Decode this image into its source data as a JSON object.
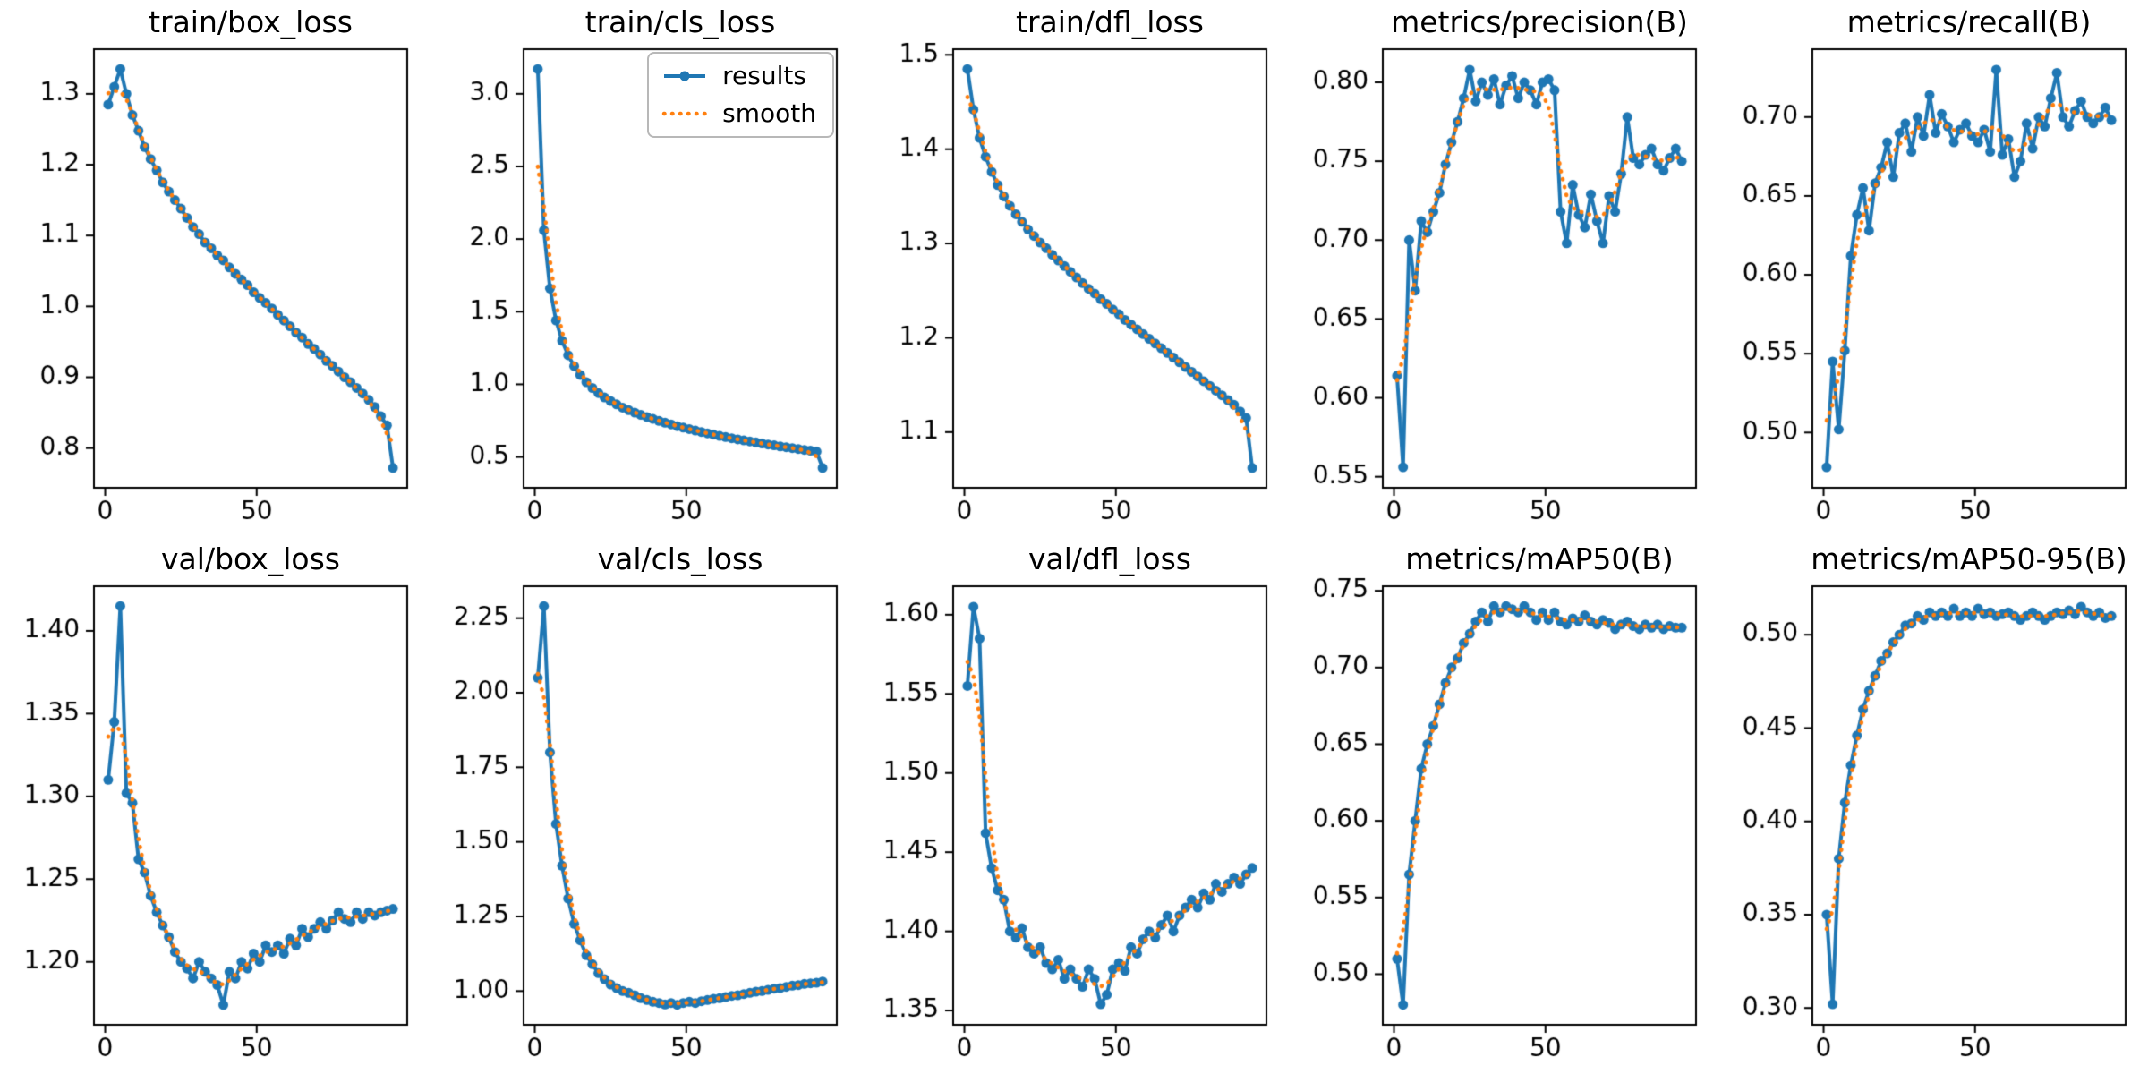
{
  "figure": {
    "background": "#ffffff",
    "colors": {
      "results": "#1f77b4",
      "smooth": "#ff7f0e",
      "axis": "#000000",
      "text": "#000000"
    },
    "legend": {
      "entries": [
        {
          "label": "results"
        },
        {
          "label": "smooth"
        }
      ]
    }
  },
  "chart_data": {
    "type": "line",
    "grid": {
      "rows": 2,
      "cols": 5
    },
    "xlim": [
      -3.7,
      99.7
    ],
    "xticks": [
      0,
      50
    ],
    "epochs": [
      1,
      3,
      5,
      7,
      9,
      11,
      13,
      15,
      17,
      19,
      21,
      23,
      25,
      27,
      29,
      31,
      33,
      35,
      37,
      39,
      41,
      43,
      45,
      47,
      49,
      51,
      53,
      55,
      57,
      59,
      61,
      63,
      65,
      67,
      69,
      71,
      73,
      75,
      77,
      79,
      81,
      83,
      85,
      87,
      89,
      91,
      93,
      95
    ],
    "series_names": [
      "results",
      "smooth"
    ],
    "smooth_note": "orange dotted 'smooth' series is a gaussian-smoothed version of the blue 'results' series",
    "charts": [
      {
        "title": "train/box_loss",
        "yticks": [
          0.8,
          0.9,
          1.0,
          1.1,
          1.2,
          1.3
        ],
        "tick_decimals": 1,
        "ylim": [
          0.744,
          1.363
        ],
        "legend": false,
        "values": [
          1.285,
          1.31,
          1.335,
          1.3,
          1.27,
          1.248,
          1.225,
          1.208,
          1.192,
          1.175,
          1.162,
          1.15,
          1.138,
          1.125,
          1.112,
          1.102,
          1.09,
          1.082,
          1.072,
          1.065,
          1.055,
          1.046,
          1.038,
          1.03,
          1.02,
          1.012,
          1.005,
          0.997,
          0.988,
          0.98,
          0.972,
          0.963,
          0.956,
          0.947,
          0.94,
          0.932,
          0.923,
          0.916,
          0.908,
          0.9,
          0.893,
          0.885,
          0.877,
          0.868,
          0.858,
          0.845,
          0.832,
          0.772
        ]
      },
      {
        "title": "train/cls_loss",
        "yticks": [
          0.5,
          1.0,
          1.5,
          2.0,
          2.5,
          3.0
        ],
        "tick_decimals": 1,
        "ylim": [
          0.288,
          3.307
        ],
        "legend": true,
        "values": [
          3.17,
          2.06,
          1.66,
          1.44,
          1.3,
          1.2,
          1.125,
          1.065,
          1.015,
          0.975,
          0.94,
          0.91,
          0.885,
          0.862,
          0.84,
          0.822,
          0.805,
          0.79,
          0.775,
          0.762,
          0.748,
          0.736,
          0.724,
          0.712,
          0.702,
          0.692,
          0.682,
          0.672,
          0.663,
          0.654,
          0.645,
          0.637,
          0.629,
          0.621,
          0.614,
          0.607,
          0.6,
          0.593,
          0.586,
          0.58,
          0.573,
          0.567,
          0.561,
          0.555,
          0.549,
          0.543,
          0.537,
          0.425
        ]
      },
      {
        "title": "train/dfl_loss",
        "yticks": [
          1.1,
          1.2,
          1.3,
          1.4,
          1.5
        ],
        "tick_decimals": 1,
        "ylim": [
          1.041,
          1.506
        ],
        "legend": false,
        "values": [
          1.485,
          1.442,
          1.412,
          1.392,
          1.376,
          1.362,
          1.35,
          1.34,
          1.331,
          1.323,
          1.315,
          1.308,
          1.301,
          1.295,
          1.288,
          1.282,
          1.276,
          1.27,
          1.264,
          1.258,
          1.252,
          1.247,
          1.241,
          1.236,
          1.23,
          1.225,
          1.219,
          1.214,
          1.209,
          1.204,
          1.199,
          1.194,
          1.189,
          1.184,
          1.179,
          1.174,
          1.169,
          1.164,
          1.159,
          1.154,
          1.149,
          1.144,
          1.139,
          1.134,
          1.129,
          1.122,
          1.115,
          1.062
        ]
      },
      {
        "title": "metrics/precision(B)",
        "yticks": [
          0.55,
          0.6,
          0.65,
          0.7,
          0.75,
          0.8
        ],
        "tick_decimals": 2,
        "ylim": [
          0.543,
          0.821
        ],
        "legend": false,
        "values": [
          0.614,
          0.556,
          0.7,
          0.668,
          0.712,
          0.705,
          0.718,
          0.73,
          0.748,
          0.762,
          0.775,
          0.79,
          0.808,
          0.788,
          0.8,
          0.792,
          0.802,
          0.786,
          0.798,
          0.804,
          0.79,
          0.8,
          0.795,
          0.786,
          0.8,
          0.802,
          0.795,
          0.718,
          0.698,
          0.735,
          0.716,
          0.708,
          0.729,
          0.712,
          0.698,
          0.728,
          0.718,
          0.742,
          0.778,
          0.752,
          0.748,
          0.754,
          0.758,
          0.748,
          0.744,
          0.752,
          0.758,
          0.75
        ]
      },
      {
        "title": "metrics/recall(B)",
        "yticks": [
          0.5,
          0.55,
          0.6,
          0.65,
          0.7
        ],
        "tick_decimals": 2,
        "ylim": [
          0.465,
          0.743
        ],
        "legend": false,
        "values": [
          0.478,
          0.545,
          0.502,
          0.552,
          0.612,
          0.638,
          0.655,
          0.628,
          0.658,
          0.668,
          0.684,
          0.662,
          0.69,
          0.696,
          0.678,
          0.7,
          0.688,
          0.714,
          0.69,
          0.702,
          0.694,
          0.684,
          0.692,
          0.696,
          0.688,
          0.684,
          0.692,
          0.678,
          0.73,
          0.676,
          0.686,
          0.662,
          0.672,
          0.696,
          0.68,
          0.7,
          0.694,
          0.712,
          0.728,
          0.7,
          0.694,
          0.704,
          0.71,
          0.7,
          0.696,
          0.7,
          0.706,
          0.698
        ]
      },
      {
        "title": "val/box_loss",
        "yticks": [
          1.2,
          1.25,
          1.3,
          1.35,
          1.4
        ],
        "tick_decimals": 2,
        "ylim": [
          1.162,
          1.427
        ],
        "legend": false,
        "values": [
          1.31,
          1.345,
          1.415,
          1.302,
          1.296,
          1.262,
          1.254,
          1.24,
          1.23,
          1.222,
          1.215,
          1.206,
          1.2,
          1.196,
          1.19,
          1.2,
          1.194,
          1.19,
          1.186,
          1.174,
          1.194,
          1.19,
          1.2,
          1.196,
          1.205,
          1.2,
          1.21,
          1.206,
          1.21,
          1.205,
          1.214,
          1.21,
          1.22,
          1.215,
          1.22,
          1.224,
          1.22,
          1.225,
          1.23,
          1.226,
          1.224,
          1.23,
          1.226,
          1.23,
          1.228,
          1.23,
          1.231,
          1.232
        ]
      },
      {
        "title": "val/cls_loss",
        "yticks": [
          1.0,
          1.25,
          1.5,
          1.75,
          2.0,
          2.25
        ],
        "tick_decimals": 2,
        "ylim": [
          0.887,
          2.357
        ],
        "legend": false,
        "values": [
          2.05,
          2.29,
          1.8,
          1.56,
          1.42,
          1.31,
          1.225,
          1.17,
          1.12,
          1.09,
          1.06,
          1.04,
          1.022,
          1.01,
          1.0,
          0.994,
          0.986,
          0.976,
          0.97,
          0.964,
          0.96,
          0.955,
          0.96,
          0.954,
          0.96,
          0.964,
          0.96,
          0.966,
          0.97,
          0.974,
          0.976,
          0.98,
          0.984,
          0.986,
          0.99,
          0.994,
          0.998,
          1.0,
          1.004,
          1.008,
          1.01,
          1.014,
          1.018,
          1.02,
          1.024,
          1.026,
          1.028,
          1.032
        ]
      },
      {
        "title": "val/dfl_loss",
        "yticks": [
          1.35,
          1.4,
          1.45,
          1.5,
          1.55,
          1.6
        ],
        "tick_decimals": 2,
        "ylim": [
          1.341,
          1.618
        ],
        "legend": false,
        "values": [
          1.555,
          1.605,
          1.585,
          1.462,
          1.44,
          1.426,
          1.42,
          1.4,
          1.396,
          1.402,
          1.39,
          1.386,
          1.39,
          1.38,
          1.376,
          1.382,
          1.37,
          1.376,
          1.37,
          1.365,
          1.376,
          1.37,
          1.354,
          1.36,
          1.376,
          1.38,
          1.375,
          1.39,
          1.386,
          1.395,
          1.4,
          1.396,
          1.404,
          1.41,
          1.4,
          1.41,
          1.415,
          1.42,
          1.415,
          1.424,
          1.42,
          1.43,
          1.425,
          1.43,
          1.434,
          1.43,
          1.436,
          1.44
        ]
      },
      {
        "title": "metrics/mAP50(B)",
        "yticks": [
          0.5,
          0.55,
          0.6,
          0.65,
          0.7,
          0.75
        ],
        "tick_decimals": 2,
        "ylim": [
          0.467,
          0.753
        ],
        "legend": false,
        "values": [
          0.51,
          0.48,
          0.565,
          0.6,
          0.634,
          0.65,
          0.662,
          0.676,
          0.69,
          0.7,
          0.706,
          0.716,
          0.722,
          0.73,
          0.736,
          0.73,
          0.74,
          0.736,
          0.74,
          0.738,
          0.736,
          0.74,
          0.736,
          0.731,
          0.736,
          0.731,
          0.736,
          0.73,
          0.728,
          0.732,
          0.73,
          0.734,
          0.73,
          0.728,
          0.731,
          0.729,
          0.725,
          0.728,
          0.73,
          0.727,
          0.725,
          0.728,
          0.726,
          0.728,
          0.725,
          0.727,
          0.726,
          0.726
        ]
      },
      {
        "title": "metrics/mAP50-95(B)",
        "yticks": [
          0.3,
          0.35,
          0.4,
          0.45,
          0.5
        ],
        "tick_decimals": 2,
        "ylim": [
          0.291,
          0.526
        ],
        "legend": false,
        "values": [
          0.35,
          0.302,
          0.38,
          0.41,
          0.43,
          0.446,
          0.46,
          0.47,
          0.478,
          0.486,
          0.49,
          0.496,
          0.5,
          0.505,
          0.506,
          0.51,
          0.508,
          0.512,
          0.51,
          0.512,
          0.51,
          0.514,
          0.51,
          0.512,
          0.51,
          0.514,
          0.511,
          0.512,
          0.51,
          0.511,
          0.512,
          0.51,
          0.508,
          0.51,
          0.512,
          0.51,
          0.508,
          0.51,
          0.512,
          0.511,
          0.513,
          0.511,
          0.515,
          0.512,
          0.51,
          0.512,
          0.509,
          0.51
        ]
      }
    ]
  }
}
